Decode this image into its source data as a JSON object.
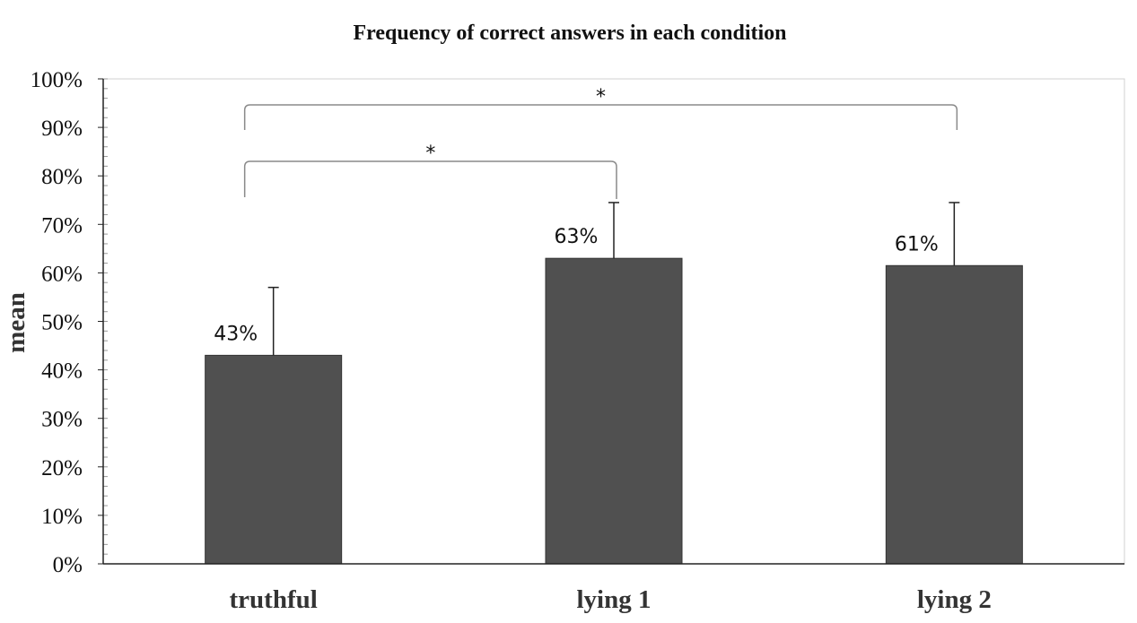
{
  "chart_data": {
    "type": "bar",
    "title": "Frequency of correct answers in each condition",
    "xlabel": "",
    "ylabel": "mean",
    "categories": [
      "truthful",
      "lying 1",
      "lying 2"
    ],
    "values": [
      0.43,
      0.63,
      0.615
    ],
    "data_labels": [
      "43%",
      "63%",
      "61%"
    ],
    "error_upper": [
      0.57,
      0.745,
      0.745
    ],
    "ylim": [
      0,
      1.0
    ],
    "yticks": [
      0,
      0.1,
      0.2,
      0.3,
      0.4,
      0.5,
      0.6,
      0.7,
      0.8,
      0.9,
      1.0
    ],
    "ytick_labels": [
      "0%",
      "10%",
      "20%",
      "30%",
      "40%",
      "50%",
      "60%",
      "70%",
      "80%",
      "90%",
      "100%"
    ],
    "grid": false,
    "legend": "none",
    "bar_color": "#505050",
    "significance": [
      {
        "from": "truthful",
        "to": "lying 1",
        "label": "*"
      },
      {
        "from": "truthful",
        "to": "lying 2",
        "label": "*"
      }
    ]
  }
}
